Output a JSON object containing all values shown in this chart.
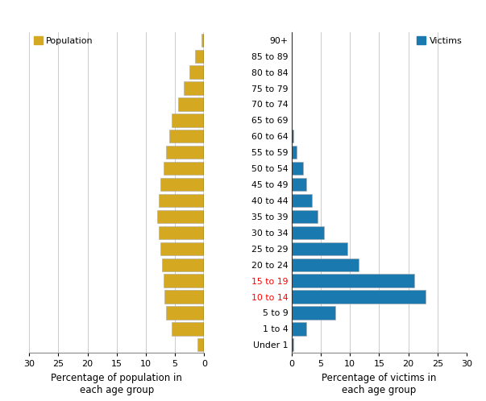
{
  "age_groups": [
    "Under 1",
    "1 to 4",
    "5 to 9",
    "10 to 14",
    "15 to 19",
    "20 to 24",
    "25 to 29",
    "30 to 34",
    "35 to 39",
    "40 to 44",
    "45 to 49",
    "50 to 54",
    "55 to 59",
    "60 to 64",
    "65 to 69",
    "70 to 74",
    "75 to 79",
    "80 to 84",
    "85 to 89",
    "90+"
  ],
  "population": [
    1.2,
    5.5,
    6.5,
    6.8,
    7.0,
    7.2,
    7.5,
    7.8,
    8.0,
    7.8,
    7.5,
    7.0,
    6.5,
    6.0,
    5.5,
    4.5,
    3.5,
    2.5,
    1.5,
    0.5
  ],
  "victims": [
    0.3,
    2.5,
    7.5,
    23.0,
    21.0,
    11.5,
    9.5,
    5.5,
    4.5,
    3.5,
    2.5,
    2.0,
    0.8,
    0.3,
    0.0,
    0.0,
    0.0,
    0.0,
    0.0,
    0.0
  ],
  "pop_color": "#D4A820",
  "vic_color": "#1A7AAF",
  "pop_label": "Population",
  "vic_label": "Victims",
  "xlim_left": 30,
  "xlim_right": 30,
  "xlabel_left": "Percentage of population in\neach age group",
  "xlabel_right": "Percentage of victims in\neach age group",
  "background_color": "#ffffff",
  "grid_color": "#cccccc",
  "highlight_labels": [
    "15 to 19",
    "10 to 14"
  ]
}
